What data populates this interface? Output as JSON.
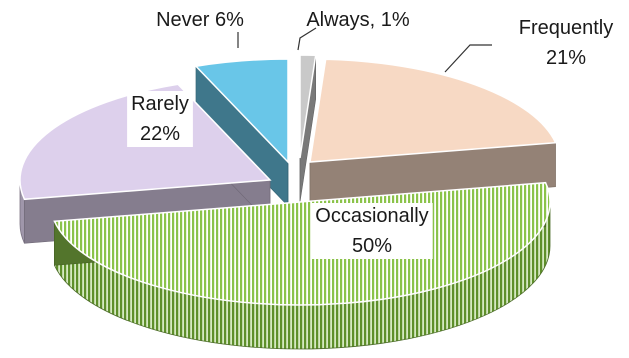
{
  "chart_data": {
    "type": "pie",
    "style": "3d-exploded",
    "slices": [
      {
        "label": "Always",
        "value": 1,
        "text": [
          "Always, 1%"
        ],
        "color": "#c9c9c9",
        "pattern": "solid"
      },
      {
        "label": "Frequently",
        "value": 21,
        "text": [
          "Frequently",
          "21%"
        ],
        "color": "#f7d9c4",
        "pattern": "solid"
      },
      {
        "label": "Occasionally",
        "value": 50,
        "text": [
          "Occasionally",
          "50%"
        ],
        "color": "#8bc34a",
        "pattern": "vertical-stripes"
      },
      {
        "label": "Rarely",
        "value": 22,
        "text": [
          "Rarely",
          "22%"
        ],
        "color": "#ddd0ec",
        "pattern": "solid"
      },
      {
        "label": "Never",
        "value": 6,
        "text": [
          "Never 6%"
        ],
        "color": "#69c6e8",
        "pattern": "solid"
      }
    ]
  }
}
